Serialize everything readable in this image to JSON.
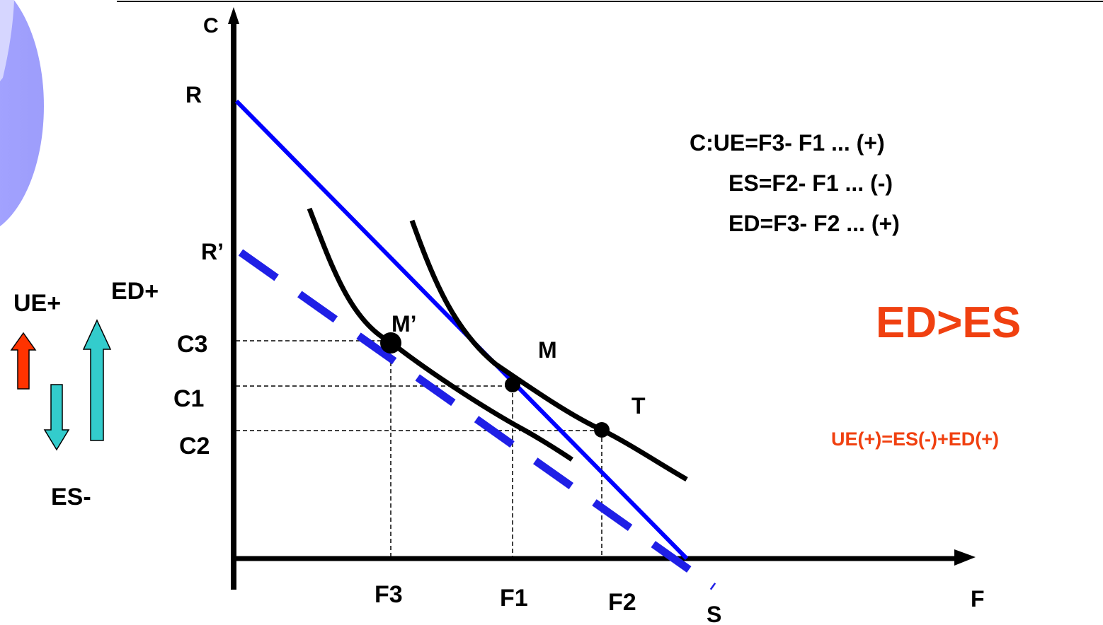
{
  "axes": {
    "y_label": "C",
    "x_label": "F"
  },
  "budget_labels": {
    "r": "R",
    "r_prime": "R’",
    "s": "S"
  },
  "point_labels": {
    "m_prime": "M’",
    "m": "M",
    "t": "T"
  },
  "y_ticks": {
    "c3": "C3",
    "c1": "C1",
    "c2": "C2"
  },
  "x_ticks": {
    "f3": "F3",
    "f1": "F1",
    "f2": "F2"
  },
  "equations": {
    "line1": "C:UE=F3- F1 ... (+)",
    "line2": "ES=F2- F1 ... (-)",
    "line3": "ED=F3- F2 ... (+)"
  },
  "comparison": "ED>ES",
  "identity": "UE(+)=ES(-)+ED(+)",
  "side_labels": {
    "ue": "UE+",
    "ed": "ED+",
    "es": "ES-"
  },
  "colors": {
    "budget_line": "#0000ff",
    "compensated_line": "#1f1fe6",
    "indifference_curve": "#000000",
    "highlight_text": "#f04010",
    "arrow_up_red": "#ff3300",
    "arrow_teal": "#33cccc",
    "circle": "#9999ff"
  }
}
